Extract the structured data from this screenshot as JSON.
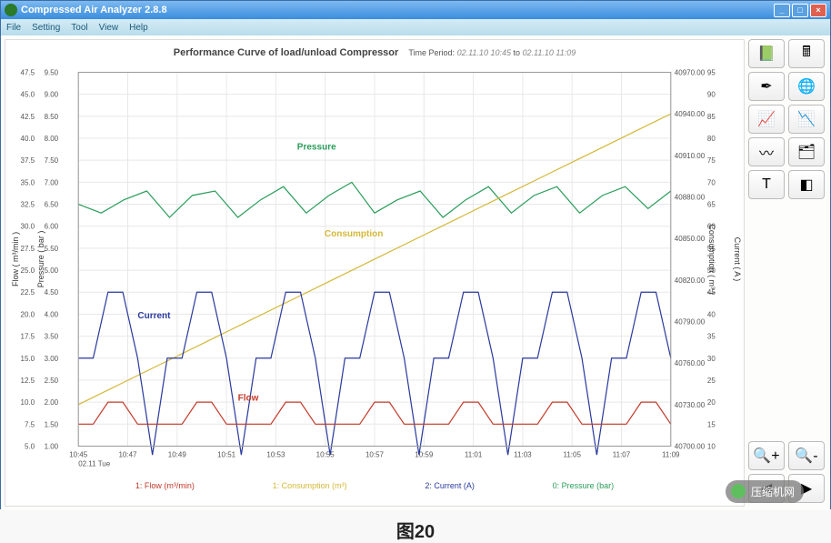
{
  "window": {
    "title": "Compressed Air Analyzer 2.8.8",
    "menus": [
      "File",
      "Setting",
      "Tool",
      "View",
      "Help"
    ]
  },
  "chart": {
    "title": "Performance Curve of load/unload Compressor",
    "time_period_label": "Time Period:",
    "time_from": "02.11.10 10:45",
    "time_sep": "to",
    "time_to": "02.11.10 11:09",
    "axes": {
      "left1": {
        "label": "Flow ( m³/min )",
        "min": 5.0,
        "max": 47.5,
        "step": 2.5
      },
      "left2": {
        "label": "Pressure ( bar )",
        "min": 1.0,
        "max": 9.5,
        "step": 0.5
      },
      "right1": {
        "label": "Consumption ( m³ )",
        "min": 40700,
        "max": 40970,
        "step": 30
      },
      "right2": {
        "label": "Current ( A )",
        "min": 10,
        "max": 95,
        "step": 5
      },
      "x": {
        "label": "02.11 Tue",
        "ticks": [
          "10:45",
          "10:47",
          "10:49",
          "10:51",
          "10:53",
          "10:55",
          "10:57",
          "10:59",
          "11:01",
          "11:03",
          "11:05",
          "11:07",
          "11:09"
        ]
      }
    },
    "series": {
      "pressure": {
        "color": "#2a9d5a",
        "label": "Pressure",
        "data": [
          6.5,
          6.3,
          6.6,
          6.8,
          6.2,
          6.7,
          6.8,
          6.2,
          6.6,
          6.9,
          6.3,
          6.7,
          7.0,
          6.3,
          6.6,
          6.8,
          6.2,
          6.6,
          6.9,
          6.3,
          6.7,
          6.9,
          6.3,
          6.7,
          6.9,
          6.4,
          6.8
        ]
      },
      "consumption": {
        "color": "#d4b838",
        "label": "Consumption",
        "data": [
          40730,
          40745,
          40760,
          40775,
          40790,
          40805,
          40820,
          40835,
          40850,
          40865,
          40880,
          40895,
          40910,
          40925,
          40940
        ]
      },
      "current": {
        "color": "#2a3a9d",
        "label": "Current",
        "data": [
          30,
          30,
          45,
          45,
          30,
          8,
          30,
          30,
          45,
          45,
          30,
          8,
          30,
          30,
          45,
          45,
          30,
          8,
          30,
          30,
          45,
          45,
          30,
          8,
          30,
          30,
          45,
          45,
          30,
          8,
          30,
          30,
          45,
          45,
          30,
          8,
          30,
          30,
          45,
          45,
          30
        ]
      },
      "flow": {
        "color": "#c23a2a",
        "label": "Flow",
        "data": [
          7.5,
          7.5,
          10,
          10,
          7.5,
          7.5,
          7.5,
          7.5,
          10,
          10,
          7.5,
          7.5,
          7.5,
          7.5,
          10,
          10,
          7.5,
          7.5,
          7.5,
          7.5,
          10,
          10,
          7.5,
          7.5,
          7.5,
          7.5,
          10,
          10,
          7.5,
          7.5,
          7.5,
          7.5,
          10,
          10,
          7.5,
          7.5,
          7.5,
          7.5,
          10,
          10,
          7.5
        ]
      }
    },
    "legend": [
      {
        "text": "1: Flow (m³/min)",
        "color": "#c23a2a"
      },
      {
        "text": "1: Consumption (m³)",
        "color": "#d4b838"
      },
      {
        "text": "2: Current (A)",
        "color": "#2a3a9d"
      },
      {
        "text": "0: Pressure (bar)",
        "color": "#2a9d5a"
      }
    ]
  },
  "toolbar": {
    "buttons": [
      [
        "notebook-icon",
        "calculator-icon"
      ],
      [
        "pen-icon",
        "globe-icon"
      ],
      [
        "chart-line-icon",
        "chart-area-icon"
      ],
      [
        "chart-wave-icon",
        "layers-icon"
      ],
      [
        "text-icon",
        "shape-icon"
      ]
    ],
    "bottom": [
      [
        "zoom-in-icon",
        "zoom-out-icon"
      ],
      [
        "arrow-left-icon",
        "arrow-right-icon"
      ]
    ]
  },
  "caption": "图20",
  "watermark": "压缩机网"
}
